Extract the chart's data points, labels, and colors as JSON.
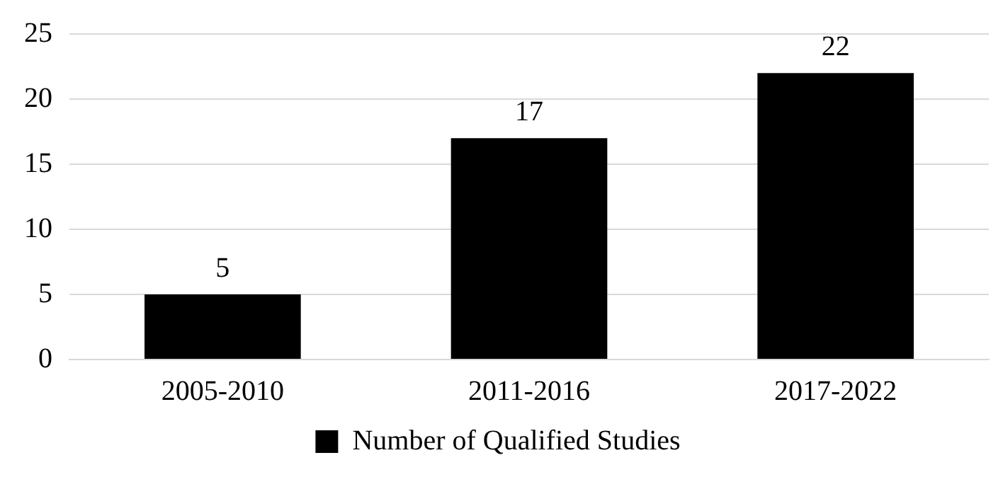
{
  "chart_data": {
    "type": "bar",
    "categories": [
      "2005-2010",
      "2011-2016",
      "2017-2022"
    ],
    "series": [
      {
        "name": "Number of Qualified Studies",
        "color": "#000000",
        "values": [
          5,
          17,
          22
        ]
      }
    ],
    "ylim": [
      0,
      25
    ],
    "yticks": [
      0,
      5,
      10,
      15,
      20,
      25
    ],
    "grid": "y",
    "legend": "bottom",
    "data_labels": true
  }
}
